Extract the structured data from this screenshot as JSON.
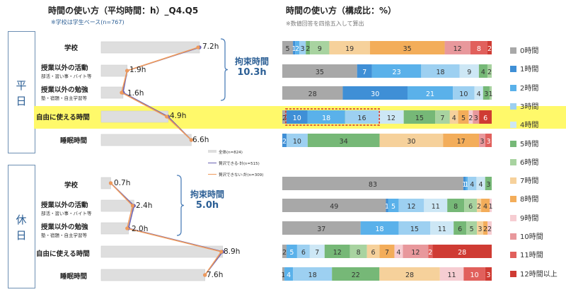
{
  "left_title": "時間の使い方（平均時間：h）_Q4.Q5",
  "left_note": "※学校は学生ベース(n=767)",
  "right_title": "時間の使い方（構成比：%）",
  "right_note": "※数値回答を四捨五入して算出",
  "groups": {
    "weekday": "平日",
    "holiday": "休日"
  },
  "braces": {
    "weekday_label": "拘束時間",
    "weekday_value": "10.3h",
    "holiday_label": "拘束時間",
    "holiday_value": "5.0h"
  },
  "mini_legend": {
    "all": "全体(n=824)",
    "can": "贅沢できる-計(n=515)",
    "cannot": "贅沢できない-計(n=309)"
  },
  "colors": {
    "accent_blue": "#2c5f95",
    "highlight": "#fff96a",
    "bar_gray": "#dedede",
    "line_purple": "#6a62b3",
    "line_orange": "#ef9a5b"
  },
  "categories": [
    {
      "label": "学校",
      "sub": ""
    },
    {
      "label": "授業以外の活動",
      "sub": "部活・習い事・バイト等"
    },
    {
      "label": "授業以外の勉強",
      "sub": "塾・宿題・自主学習等"
    },
    {
      "label": "自由に使える時間",
      "sub": ""
    },
    {
      "label": "睡眠時間",
      "sub": ""
    }
  ],
  "legend": [
    {
      "label": "0時間",
      "color": "#a8a8a8"
    },
    {
      "label": "1時間",
      "color": "#3f8fd6"
    },
    {
      "label": "2時間",
      "color": "#5ab1ea"
    },
    {
      "label": "3時間",
      "color": "#9dd0f1"
    },
    {
      "label": "4時間",
      "color": "#cde7f5"
    },
    {
      "label": "5時間",
      "color": "#76b877"
    },
    {
      "label": "6時間",
      "color": "#a8d3a0"
    },
    {
      "label": "7時間",
      "color": "#f6d19b"
    },
    {
      "label": "8時間",
      "color": "#f3ad5a"
    },
    {
      "label": "9時間",
      "color": "#f6cdd2"
    },
    {
      "label": "10時間",
      "color": "#e8989c"
    },
    {
      "label": "11時間",
      "color": "#e1605c"
    },
    {
      "label": "12時間以上",
      "color": "#cf3b33"
    }
  ],
  "chart_data": [
    {
      "type": "bar",
      "title": "時間の使い方（平均時間：h）_Q4.Q5",
      "panel": "平日",
      "categories": [
        "学校",
        "授業以外の活動",
        "授業以外の勉強",
        "自由に使える時間",
        "睡眠時間"
      ],
      "series": [
        {
          "name": "全体(n=824)",
          "values": [
            7.2,
            1.9,
            1.6,
            4.9,
            6.6
          ]
        },
        {
          "name": "贅沢できる-計(n=515)",
          "values": [
            7.2,
            1.9,
            1.6,
            4.9,
            6.6
          ]
        },
        {
          "name": "贅沢できない-計(n=309)",
          "values": [
            7.1,
            1.9,
            1.5,
            4.8,
            6.6
          ]
        }
      ],
      "value_labels": [
        "7.2h",
        "1.9h",
        "1.6h",
        "4.9h",
        "6.6h"
      ]
    },
    {
      "type": "bar",
      "title": "時間の使い方（平均時間：h）_Q4.Q5",
      "panel": "休日",
      "categories": [
        "学校",
        "授業以外の活動",
        "授業以外の勉強",
        "自由に使える時間",
        "睡眠時間"
      ],
      "series": [
        {
          "name": "全体(n=824)",
          "values": [
            0.7,
            2.4,
            2.0,
            8.9,
            7.6
          ]
        },
        {
          "name": "贅沢できる-計(n=515)",
          "values": [
            0.7,
            2.4,
            2.0,
            8.9,
            7.6
          ]
        },
        {
          "name": "贅沢できない-計(n=309)",
          "values": [
            0.7,
            2.3,
            1.9,
            8.8,
            7.6
          ]
        }
      ],
      "value_labels": [
        "0.7h",
        "2.4h",
        "2.0h",
        "8.9h",
        "7.6h"
      ]
    },
    {
      "type": "bar",
      "title": "時間の使い方（構成比：%）",
      "panel": "平日",
      "stacked": true,
      "categories": [
        "0時間",
        "1時間",
        "2時間",
        "3時間",
        "4時間",
        "5時間",
        "6時間",
        "7時間",
        "8時間",
        "9時間",
        "10時間",
        "11時間",
        "12時間以上"
      ],
      "rows": [
        {
          "label": "学校",
          "values": [
            5,
            1,
            2,
            3,
            0,
            2,
            9,
            19,
            35,
            0,
            12,
            8,
            2
          ],
          "extra_labels": [
            "3"
          ]
        },
        {
          "label": "授業以外の活動",
          "values": [
            35,
            7,
            23,
            18,
            9,
            4,
            2,
            0,
            0,
            0,
            0,
            0,
            0
          ]
        },
        {
          "label": "授業以外の勉強",
          "values": [
            28,
            30,
            21,
            10,
            4,
            3,
            1,
            0,
            0,
            0,
            0,
            0,
            0
          ]
        },
        {
          "label": "自由に使える時間",
          "values": [
            2,
            10,
            18,
            16,
            12,
            15,
            7,
            4,
            5,
            2,
            3,
            0,
            6
          ]
        },
        {
          "label": "睡眠時間",
          "values": [
            0,
            2,
            0,
            10,
            0,
            34,
            0,
            30,
            17,
            0,
            3,
            3,
            0
          ]
        }
      ]
    },
    {
      "type": "bar",
      "title": "時間の使い方（構成比：%）",
      "panel": "休日",
      "stacked": true,
      "categories": [
        "0時間",
        "1時間",
        "2時間",
        "3時間",
        "4時間",
        "5時間",
        "6時間",
        "7時間",
        "8時間",
        "9時間",
        "10時間",
        "11時間",
        "12時間以上"
      ],
      "rows": [
        {
          "label": "学校",
          "values": [
            83,
            1,
            1,
            4,
            4,
            3,
            0,
            0,
            0,
            0,
            0,
            0,
            0
          ]
        },
        {
          "label": "授業以外の活動",
          "values": [
            49,
            1,
            5,
            12,
            11,
            8,
            6,
            2,
            4,
            1,
            0,
            0,
            0
          ]
        },
        {
          "label": "授業以外の勉強",
          "values": [
            37,
            0,
            18,
            15,
            11,
            6,
            5,
            3,
            2,
            2,
            0,
            0,
            0
          ]
        },
        {
          "label": "自由に使える時間",
          "values": [
            2,
            0,
            5,
            6,
            7,
            12,
            8,
            6,
            7,
            4,
            12,
            2,
            28
          ]
        },
        {
          "label": "睡眠時間",
          "values": [
            1,
            0,
            4,
            18,
            0,
            22,
            0,
            28,
            0,
            11,
            0,
            10,
            3
          ]
        }
      ]
    }
  ]
}
